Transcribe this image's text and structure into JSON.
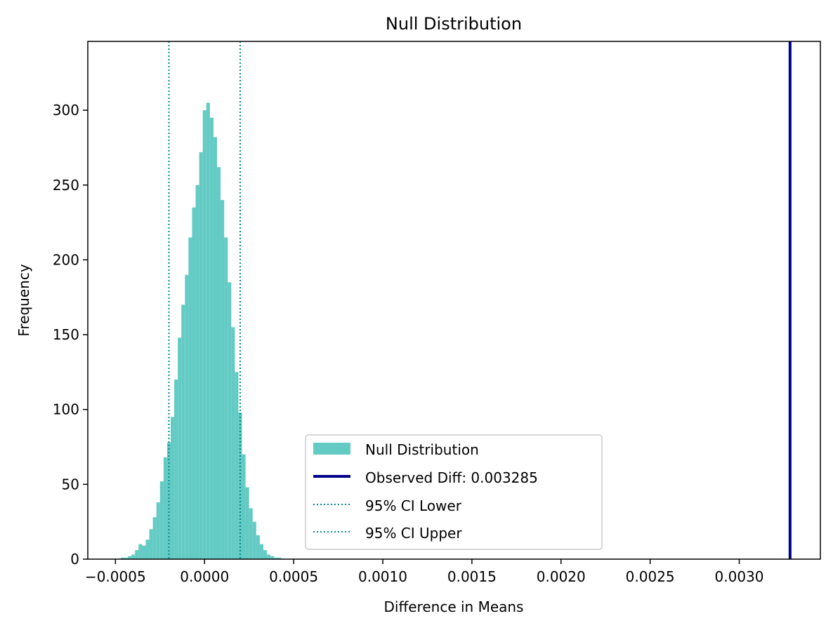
{
  "chart_data": {
    "type": "bar",
    "title": "Null Distribution",
    "xlabel": "Difference in Means",
    "ylabel": "Frequency",
    "xlim": [
      -0.000655,
      0.003455
    ],
    "ylim": [
      0,
      346
    ],
    "x_ticks": [
      -0.0005,
      0.0,
      0.0005,
      0.001,
      0.0015,
      0.002,
      0.0025,
      0.003
    ],
    "x_tick_labels": [
      "−0.0005",
      "0.0000",
      "0.0005",
      "0.0010",
      "0.0015",
      "0.0020",
      "0.0025",
      "0.0030"
    ],
    "y_ticks": [
      0,
      50,
      100,
      150,
      200,
      250,
      300
    ],
    "y_tick_labels": [
      "0",
      "50",
      "100",
      "150",
      "200",
      "250",
      "300"
    ],
    "grid": false,
    "legend_position": "lower center",
    "series": [
      {
        "name": "Null Distribution",
        "kind": "histogram",
        "color": "#63cbc4",
        "bins": [
          [
            -0.00046,
            1
          ],
          [
            -0.00044,
            1
          ],
          [
            -0.00042,
            2
          ],
          [
            -0.0004,
            3
          ],
          [
            -0.00038,
            6
          ],
          [
            -0.00036,
            10
          ],
          [
            -0.00034,
            9
          ],
          [
            -0.00032,
            13
          ],
          [
            -0.0003,
            20
          ],
          [
            -0.00028,
            28
          ],
          [
            -0.00026,
            38
          ],
          [
            -0.00024,
            52
          ],
          [
            -0.00022,
            68
          ],
          [
            -0.0002,
            78
          ],
          [
            -0.00018,
            95
          ],
          [
            -0.00016,
            120
          ],
          [
            -0.00014,
            148
          ],
          [
            -0.00012,
            170
          ],
          [
            -0.0001,
            190
          ],
          [
            -8e-05,
            215
          ],
          [
            -6e-05,
            235
          ],
          [
            -4e-05,
            250
          ],
          [
            -2e-05,
            272
          ],
          [
            0.0,
            300
          ],
          [
            2e-05,
            305
          ],
          [
            4e-05,
            295
          ],
          [
            6e-05,
            282
          ],
          [
            8e-05,
            262
          ],
          [
            0.0001,
            240
          ],
          [
            0.00012,
            215
          ],
          [
            0.00014,
            185
          ],
          [
            0.00016,
            155
          ],
          [
            0.00018,
            125
          ],
          [
            0.0002,
            98
          ],
          [
            0.00022,
            70
          ],
          [
            0.00024,
            48
          ],
          [
            0.00026,
            34
          ],
          [
            0.00028,
            25
          ],
          [
            0.0003,
            16
          ],
          [
            0.00032,
            10
          ],
          [
            0.00034,
            6
          ],
          [
            0.00036,
            3
          ],
          [
            0.00038,
            2
          ],
          [
            0.0004,
            1
          ],
          [
            0.00042,
            1
          ]
        ]
      },
      {
        "name": "Observed Diff: 0.003285",
        "kind": "vline",
        "x": 0.003285,
        "color": "#00008b",
        "style": "solid"
      },
      {
        "name": "95% CI Lower",
        "kind": "vline",
        "x": -0.0002,
        "color": "#008b8b",
        "style": "dotted"
      },
      {
        "name": "95% CI Upper",
        "kind": "vline",
        "x": 0.0002,
        "color": "#008b8b",
        "style": "dotted"
      }
    ]
  }
}
